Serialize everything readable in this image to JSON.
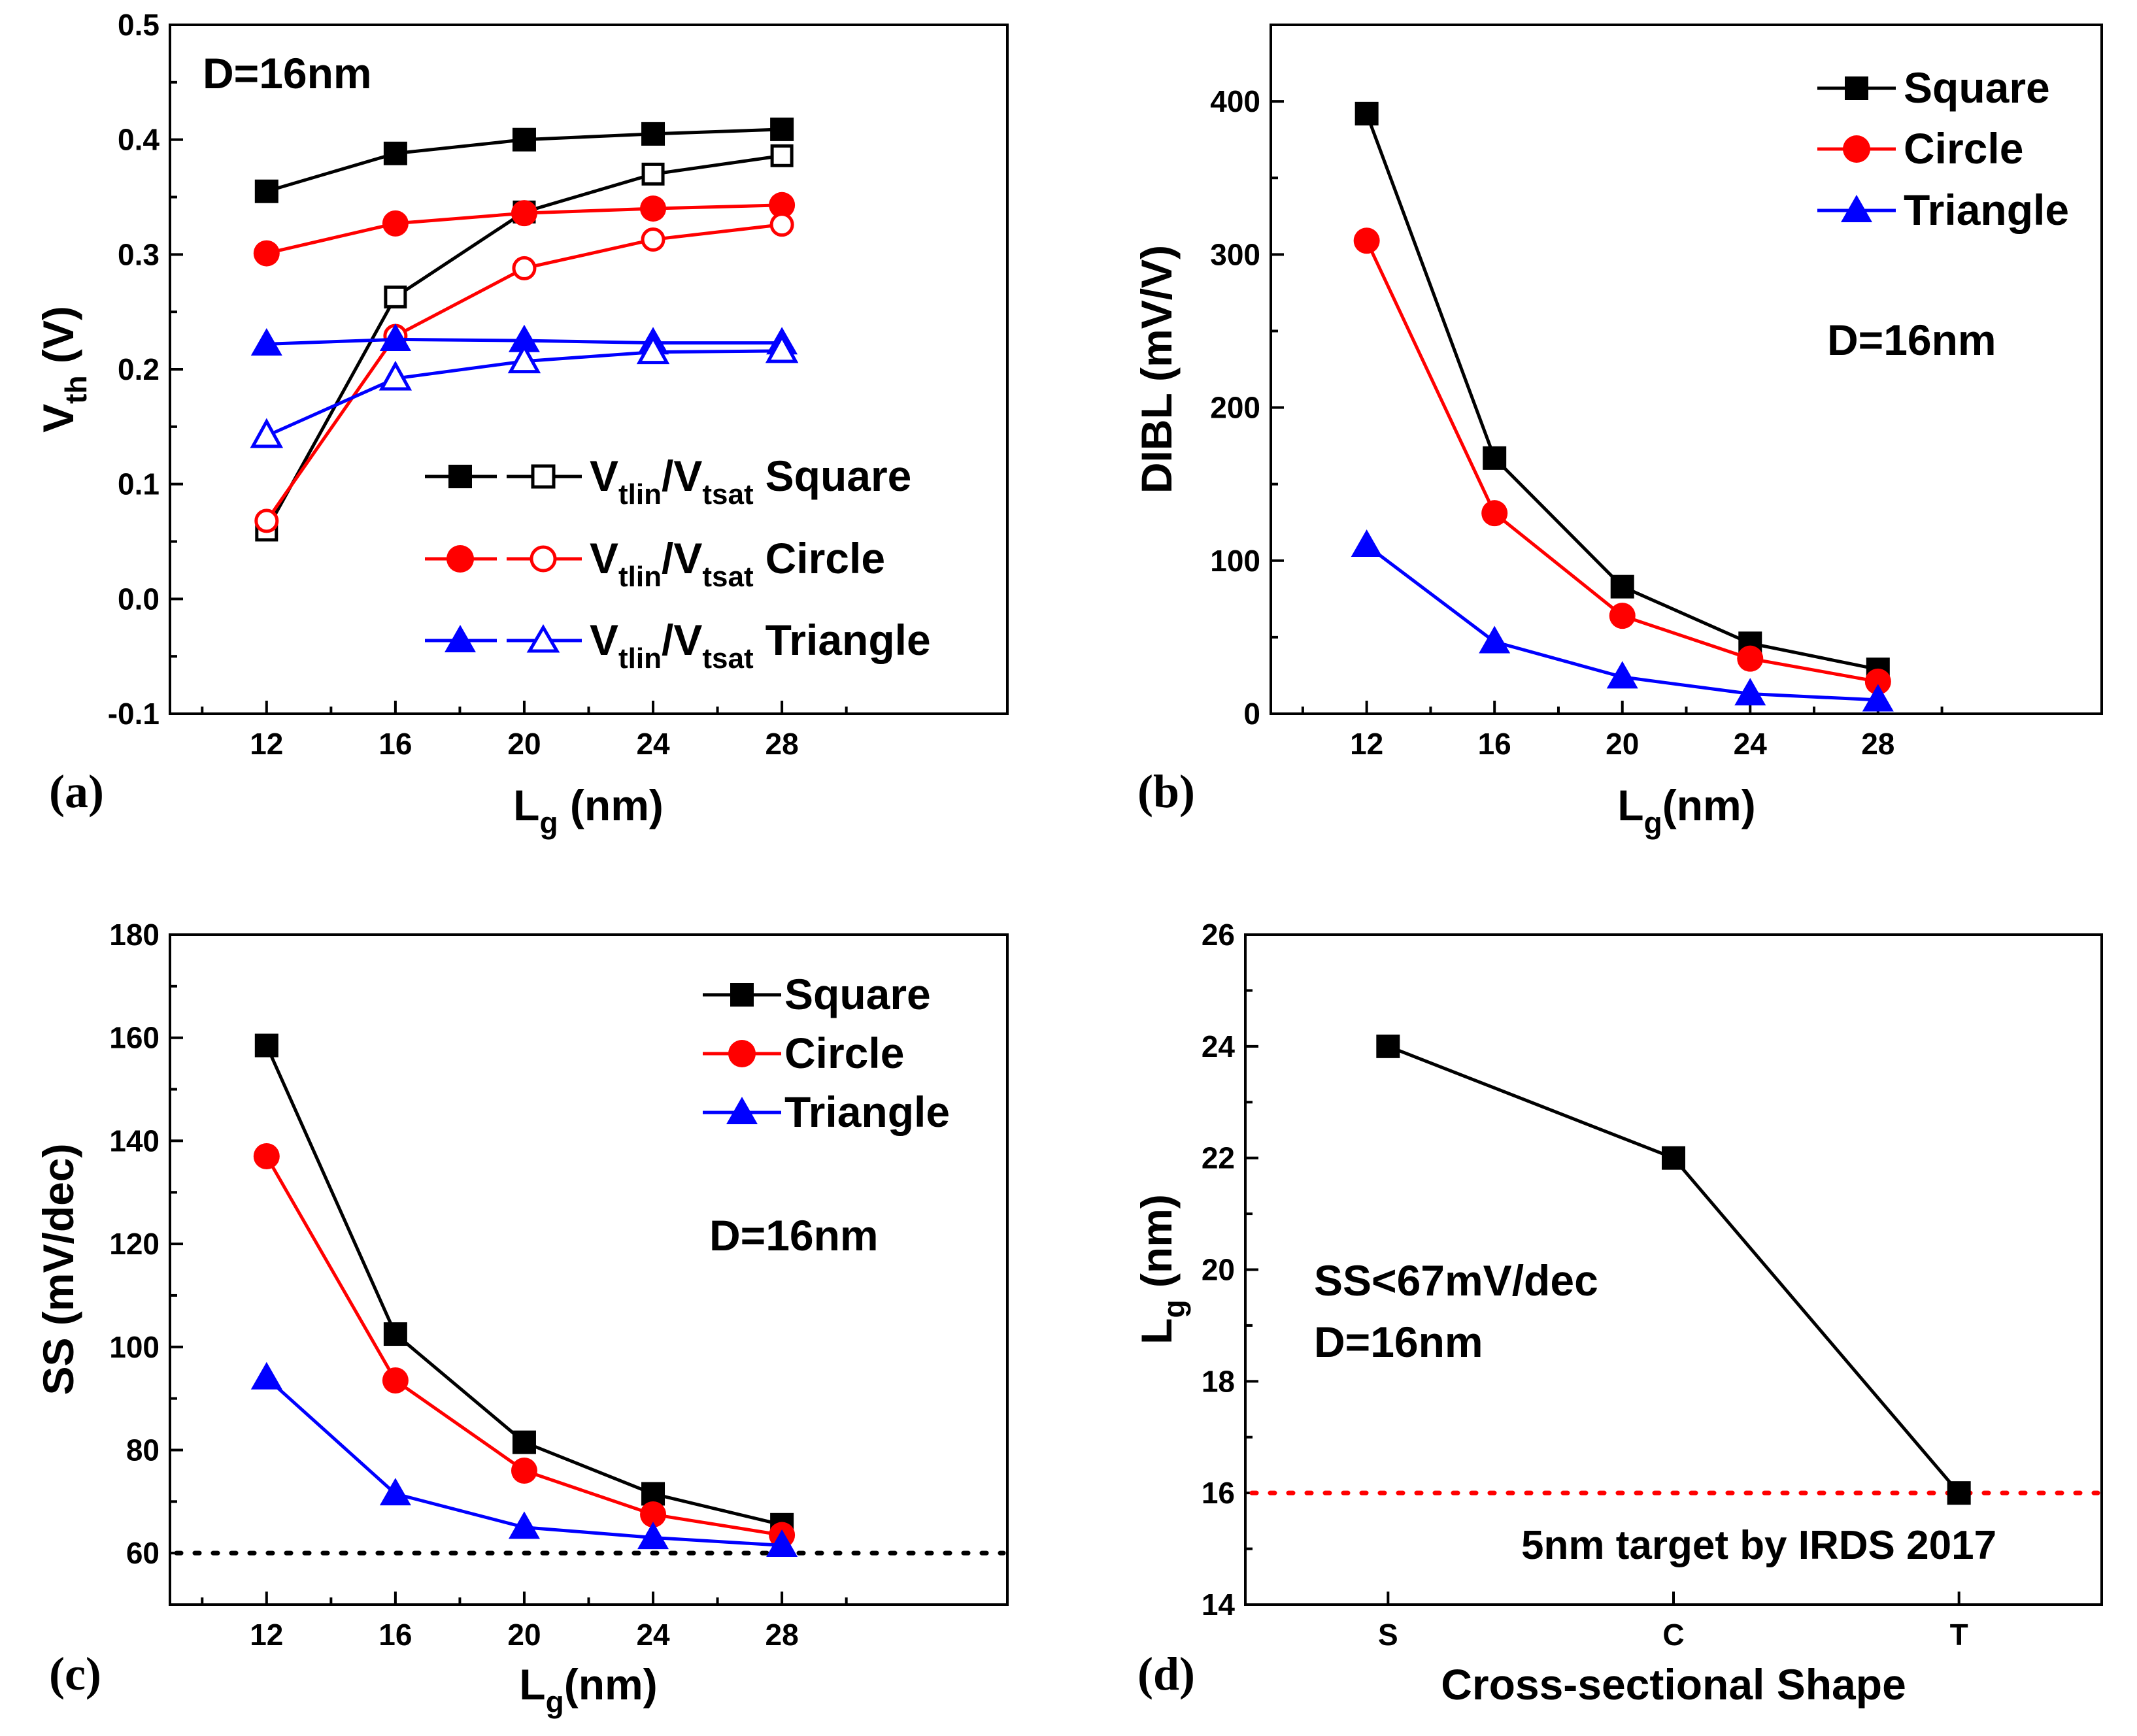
{
  "chart_data": [
    {
      "panel": "(a)",
      "type": "line",
      "ylabel_main": "V",
      "ylabel_sub": "th",
      "ylabel_unit": " (V)",
      "xlabel_main": "L",
      "xlabel_sub": "g",
      "xlabel_unit": " (nm)",
      "xlim": [
        9,
        35
      ],
      "ylim": [
        -0.1,
        0.5
      ],
      "xticks": [
        12,
        16,
        20,
        24,
        28
      ],
      "xticklabels": [
        "12",
        "16",
        "20",
        "24",
        "28"
      ],
      "yticks": [
        -0.1,
        0.0,
        0.1,
        0.2,
        0.3,
        0.4,
        0.5
      ],
      "yticklabels": [
        "-0.1",
        "0.0",
        "0.1",
        "0.2",
        "0.3",
        "0.4",
        "0.5"
      ],
      "annotation": "D=16nm",
      "series": [
        {
          "name": "Vtlin Square",
          "color": "#000000",
          "marker": "square",
          "filled": true,
          "x": [
            12,
            16,
            20,
            24,
            28
          ],
          "y": [
            0.355,
            0.388,
            0.4,
            0.405,
            0.409
          ]
        },
        {
          "name": "Vtsat Square",
          "color": "#000000",
          "marker": "square",
          "filled": false,
          "x": [
            12,
            16,
            20,
            24,
            28
          ],
          "y": [
            0.06,
            0.263,
            0.337,
            0.37,
            0.386
          ]
        },
        {
          "name": "Vtlin Circle",
          "color": "#ff0000",
          "marker": "circle",
          "filled": true,
          "x": [
            12,
            16,
            20,
            24,
            28
          ],
          "y": [
            0.301,
            0.327,
            0.336,
            0.34,
            0.343
          ]
        },
        {
          "name": "Vtsat Circle",
          "color": "#ff0000",
          "marker": "circle",
          "filled": false,
          "x": [
            12,
            16,
            20,
            24,
            28
          ],
          "y": [
            0.068,
            0.229,
            0.288,
            0.313,
            0.326
          ]
        },
        {
          "name": "Vtlin Triangle",
          "color": "#0000ff",
          "marker": "triangle",
          "filled": true,
          "x": [
            12,
            16,
            20,
            24,
            28
          ],
          "y": [
            0.222,
            0.226,
            0.225,
            0.223,
            0.223
          ]
        },
        {
          "name": "Vtsat Triangle",
          "color": "#0000ff",
          "marker": "triangle",
          "filled": false,
          "x": [
            12,
            16,
            20,
            24,
            28
          ],
          "y": [
            0.142,
            0.192,
            0.207,
            0.215,
            0.216
          ]
        }
      ],
      "legend": [
        {
          "main1": "V",
          "sub1": "tlin",
          "sep": "/V",
          "sub2": "tsat",
          "shape": "Square",
          "color": "#000000",
          "marker": "square"
        },
        {
          "main1": "V",
          "sub1": "tlin",
          "sep": "/V",
          "sub2": "tsat",
          "shape": "Circle",
          "color": "#ff0000",
          "marker": "circle"
        },
        {
          "main1": "V",
          "sub1": "tlin",
          "sep": "/V",
          "sub2": "tsat",
          "shape": "Triangle",
          "color": "#0000ff",
          "marker": "triangle"
        }
      ]
    },
    {
      "panel": "(b)",
      "type": "line",
      "ylabel": "DIBL (mV/V)",
      "xlabel_main": "L",
      "xlabel_sub": "g",
      "xlabel_unit": "(nm)",
      "xlim": [
        9,
        35
      ],
      "ylim": [
        0,
        450
      ],
      "xticks": [
        12,
        16,
        20,
        24,
        28
      ],
      "xticklabels": [
        "12",
        "16",
        "20",
        "24",
        "28"
      ],
      "yticks": [
        0,
        100,
        200,
        300,
        400
      ],
      "yticklabels": [
        "0",
        "100",
        "200",
        "300",
        "400"
      ],
      "annotation": "D=16nm",
      "series": [
        {
          "name": "Square",
          "color": "#000000",
          "marker": "square",
          "filled": true,
          "x": [
            12,
            16,
            20,
            24,
            28
          ],
          "y": [
            392,
            167,
            83,
            46,
            29
          ]
        },
        {
          "name": "Circle",
          "color": "#ff0000",
          "marker": "circle",
          "filled": true,
          "x": [
            12,
            16,
            20,
            24,
            28
          ],
          "y": [
            309,
            131,
            64,
            36,
            21
          ]
        },
        {
          "name": "Triangle",
          "color": "#0000ff",
          "marker": "triangle",
          "filled": true,
          "x": [
            12,
            16,
            20,
            24,
            28
          ],
          "y": [
            110,
            47,
            24,
            13,
            9
          ]
        }
      ]
    },
    {
      "panel": "(c)",
      "type": "line",
      "ylabel": "SS (mV/dec)",
      "xlabel_main": "L",
      "xlabel_sub": "g",
      "xlabel_unit": "(nm)",
      "xlim": [
        9,
        35
      ],
      "ylim": [
        50,
        180
      ],
      "xticks": [
        12,
        16,
        20,
        24,
        28
      ],
      "xticklabels": [
        "12",
        "16",
        "20",
        "24",
        "28"
      ],
      "yticks": [
        60,
        80,
        100,
        120,
        140,
        160,
        180
      ],
      "yticklabels": [
        "60",
        "80",
        "100",
        "120",
        "140",
        "160",
        "180"
      ],
      "annotation": "D=16nm",
      "reference_line": {
        "y": 60,
        "color": "#000000"
      },
      "series": [
        {
          "name": "Square",
          "color": "#000000",
          "marker": "square",
          "filled": true,
          "x": [
            12,
            16,
            20,
            24,
            28
          ],
          "y": [
            158.5,
            102.5,
            81.5,
            71.5,
            65.5
          ]
        },
        {
          "name": "Circle",
          "color": "#ff0000",
          "marker": "circle",
          "filled": true,
          "x": [
            12,
            16,
            20,
            24,
            28
          ],
          "y": [
            137,
            93.5,
            76,
            67.5,
            63.5
          ]
        },
        {
          "name": "Triangle",
          "color": "#0000ff",
          "marker": "triangle",
          "filled": true,
          "x": [
            12,
            16,
            20,
            24,
            28
          ],
          "y": [
            94,
            71.5,
            65,
            63,
            61.5
          ]
        }
      ]
    },
    {
      "panel": "(d)",
      "type": "line",
      "ylabel_main": "L",
      "ylabel_sub": "g",
      "ylabel_unit": " (nm)",
      "xlabel": "Cross-sectional Shape",
      "categories": [
        "S",
        "C",
        "T"
      ],
      "ylim": [
        14,
        26
      ],
      "yticks": [
        14,
        16,
        18,
        20,
        22,
        24,
        26
      ],
      "yticklabels": [
        "14",
        "16",
        "18",
        "20",
        "22",
        "24",
        "26"
      ],
      "annotation_line1": "SS<67mV/dec",
      "annotation_line2": "D=16nm",
      "reference_line": {
        "y": 16,
        "color": "#ff0000",
        "label": "5nm target by IRDS 2017"
      },
      "series": [
        {
          "name": "Lg",
          "color": "#000000",
          "marker": "square",
          "filled": true,
          "values": [
            24,
            22,
            16
          ]
        }
      ]
    }
  ]
}
